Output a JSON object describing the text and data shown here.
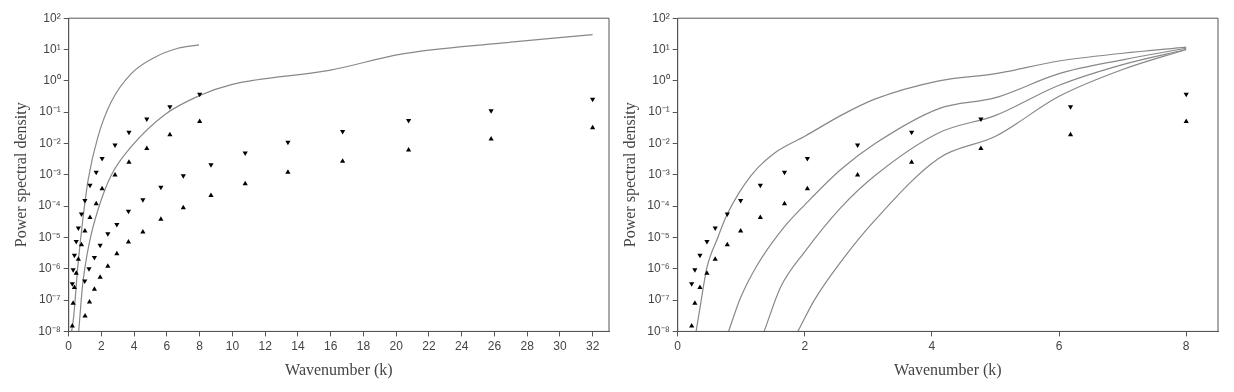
{
  "chart_data": [
    {
      "type": "scatter",
      "xlabel": "Wavenumber (k)",
      "ylabel": "Power spectral density",
      "log": "y",
      "grid": false,
      "legend": false,
      "xlim": [
        0,
        33
      ],
      "xticks": [
        0,
        2,
        4,
        6,
        8,
        10,
        12,
        14,
        16,
        18,
        20,
        22,
        24,
        26,
        28,
        30,
        32
      ],
      "ylim": [
        1e-08,
        100
      ],
      "yticks": [
        {
          "value": 1e-08,
          "label": "10⁻⁸"
        },
        {
          "value": 1e-07,
          "label": "10⁻⁷"
        },
        {
          "value": 1e-06,
          "label": "10⁻⁶"
        },
        {
          "value": 1e-05,
          "label": "10⁻⁵"
        },
        {
          "value": 0.0001,
          "label": "10⁻⁴"
        },
        {
          "value": 0.001,
          "label": "10⁻³"
        },
        {
          "value": 0.01,
          "label": "10⁻²"
        },
        {
          "value": 0.1,
          "label": "10⁻¹"
        },
        {
          "value": 1,
          "label": "10⁰"
        },
        {
          "value": 10,
          "label": "10¹"
        },
        {
          "value": 100,
          "label": "10²"
        }
      ],
      "series": [
        {
          "type": "line",
          "color": "#888888",
          "marker": "none",
          "line_style": "solid",
          "x": [
            0.18,
            0.31,
            0.55,
            0.86,
            1.2,
            1.78,
            2.59,
            3.82,
            5.24,
            6.67,
            7.96
          ],
          "values": [
            1e-08,
            3.2e-08,
            1.1e-06,
            3.6e-05,
            0.00076,
            0.016,
            0.21,
            1.7,
            5.6,
            11,
            14
          ]
        },
        {
          "type": "line",
          "color": "#888888",
          "marker": "none",
          "line_style": "solid",
          "x": [
            0.61,
            0.86,
            1.27,
            1.78,
            2.59,
            3.82,
            5.86,
            8.0,
            9.94,
            16,
            20.3,
            26.4,
            32
          ],
          "values": [
            1e-08,
            3.4e-07,
            7.1e-06,
            7.4e-05,
            0.00095,
            0.0079,
            0.083,
            0.34,
            0.76,
            2.2,
            7.1,
            16,
            30
          ]
        },
        {
          "color": "#000000",
          "marker": "triangle-down",
          "x": [
            0.22,
            0.27,
            0.35,
            0.46,
            0.59,
            0.78,
            0.99,
            1.3,
            1.68,
            2.04,
            2.83,
            3.68,
            4.77,
            6.18,
            8.0
          ],
          "values": [
            3.3e-07,
            9.3e-07,
            2.7e-06,
            7.4e-06,
            2e-05,
            5.6e-05,
            0.00015,
            0.00046,
            0.0012,
            0.0033,
            0.0089,
            0.023,
            0.06,
            0.15,
            0.37
          ]
        },
        {
          "color": "#000000",
          "marker": "triangle",
          "x": [
            0.22,
            0.27,
            0.35,
            0.46,
            0.59,
            0.78,
            0.99,
            1.3,
            1.68,
            2.04,
            2.83,
            3.68,
            4.77,
            6.18,
            8.0
          ],
          "values": [
            1.5e-08,
            7.9e-08,
            2.5e-07,
            7.2e-07,
            2e-06,
            5.8e-06,
            1.6e-05,
            4.3e-05,
            0.00012,
            0.00036,
            0.00098,
            0.0025,
            0.0069,
            0.019,
            0.05
          ]
        },
        {
          "color": "#000000",
          "marker": "triangle-down",
          "x": [
            0.98,
            1.24,
            1.57,
            1.92,
            2.39,
            2.94,
            3.65,
            4.53,
            5.63,
            7.0,
            8.69,
            10.78,
            13.39,
            16.73,
            20.76,
            25.8,
            32
          ],
          "values": [
            4.1e-07,
            1e-06,
            2.3e-06,
            5.6e-06,
            1.3e-05,
            2.6e-05,
            6.9e-05,
            0.00016,
            0.0004,
            0.00093,
            0.0021,
            0.005,
            0.011,
            0.024,
            0.054,
            0.11,
            0.26
          ]
        },
        {
          "color": "#000000",
          "marker": "triangle",
          "x": [
            1.0,
            1.27,
            1.57,
            1.92,
            2.39,
            2.94,
            3.65,
            4.53,
            5.63,
            7.0,
            8.69,
            10.78,
            13.39,
            16.73,
            20.76,
            25.8,
            32
          ],
          "values": [
            3.1e-08,
            8.7e-08,
            2.2e-07,
            5.4e-07,
            1.2e-06,
            3e-06,
            7.1e-06,
            1.5e-05,
            3.8e-05,
            8.9e-05,
            0.00022,
            0.00052,
            0.0012,
            0.0027,
            0.0062,
            0.014,
            0.032
          ]
        }
      ]
    },
    {
      "type": "scatter",
      "xlabel": "Wavenumber (k)",
      "ylabel": "Power spectral density",
      "log": "y",
      "grid": false,
      "legend": false,
      "xlim": [
        0,
        8.5
      ],
      "xticks": [
        0,
        2,
        4,
        6,
        8
      ],
      "ylim": [
        1e-08,
        100
      ],
      "yticks": [
        {
          "value": 1e-08,
          "label": "10⁻⁸"
        },
        {
          "value": 1e-07,
          "label": "10⁻⁷"
        },
        {
          "value": 1e-06,
          "label": "10⁻⁶"
        },
        {
          "value": 1e-05,
          "label": "10⁻⁵"
        },
        {
          "value": 0.0001,
          "label": "10⁻⁴"
        },
        {
          "value": 0.001,
          "label": "10⁻³"
        },
        {
          "value": 0.01,
          "label": "10⁻²"
        },
        {
          "value": 0.1,
          "label": "10⁻¹"
        },
        {
          "value": 1,
          "label": "10⁰"
        },
        {
          "value": 10,
          "label": "10¹"
        },
        {
          "value": 100,
          "label": "10²"
        }
      ],
      "series": [
        {
          "type": "line",
          "color": "#888888",
          "marker": "none",
          "line_style": "solid",
          "x": [
            0.29,
            0.37,
            0.46,
            0.62,
            0.78,
            1.15,
            1.52,
            2.0,
            2.57,
            3.1,
            4.11,
            5,
            6,
            7,
            8
          ],
          "values": [
            1e-08,
            1e-07,
            1.1e-06,
            8.7e-06,
            5.6e-05,
            0.00093,
            0.0049,
            0.017,
            0.079,
            0.26,
            1.0,
            1.7,
            4.3,
            7.6,
            12
          ]
        },
        {
          "type": "line",
          "color": "#888888",
          "marker": "none",
          "line_style": "solid",
          "x": [
            0.8,
            0.99,
            1.25,
            1.68,
            2.0,
            2.57,
            3.1,
            4.11,
            5,
            6,
            7,
            8
          ],
          "values": [
            1e-08,
            1.2e-07,
            1.3e-06,
            2.2e-05,
            0.00011,
            0.0015,
            0.0098,
            0.13,
            0.29,
            1.7,
            4.7,
            11
          ]
        },
        {
          "type": "line",
          "color": "#888888",
          "marker": "none",
          "line_style": "solid",
          "x": [
            1.36,
            1.62,
            2.0,
            2.57,
            3.1,
            4.11,
            5,
            6,
            7,
            8
          ],
          "values": [
            1e-08,
            2.6e-07,
            3.5e-06,
            9.1e-05,
            0.00093,
            0.022,
            0.079,
            0.72,
            3.3,
            10
          ]
        },
        {
          "type": "line",
          "color": "#888888",
          "marker": "none",
          "line_style": "solid",
          "x": [
            1.89,
            2.15,
            2.57,
            3.1,
            4.11,
            5,
            6,
            7,
            8
          ],
          "values": [
            1e-08,
            1e-07,
            1.7e-06,
            3.5e-05,
            0.0034,
            0.017,
            0.32,
            2.3,
            10
          ]
        },
        {
          "color": "#000000",
          "marker": "triangle-down",
          "x": [
            0.22,
            0.27,
            0.35,
            0.46,
            0.59,
            0.78,
            0.99,
            1.3,
            1.68,
            2.04,
            2.83,
            3.68,
            4.77,
            6.18,
            8.0
          ],
          "values": [
            3.3e-07,
            9.3e-07,
            2.7e-06,
            7.4e-06,
            2e-05,
            5.6e-05,
            0.00015,
            0.00046,
            0.0012,
            0.0033,
            0.0089,
            0.023,
            0.06,
            0.15,
            0.37
          ]
        },
        {
          "color": "#000000",
          "marker": "triangle",
          "x": [
            0.22,
            0.27,
            0.35,
            0.46,
            0.59,
            0.78,
            0.99,
            1.3,
            1.68,
            2.04,
            2.83,
            3.68,
            4.77,
            6.18,
            8.0
          ],
          "values": [
            1.5e-08,
            7.9e-08,
            2.5e-07,
            7.2e-07,
            2e-06,
            5.8e-06,
            1.6e-05,
            4.3e-05,
            0.00012,
            0.00036,
            0.00098,
            0.0025,
            0.0069,
            0.019,
            0.05
          ]
        }
      ]
    }
  ]
}
